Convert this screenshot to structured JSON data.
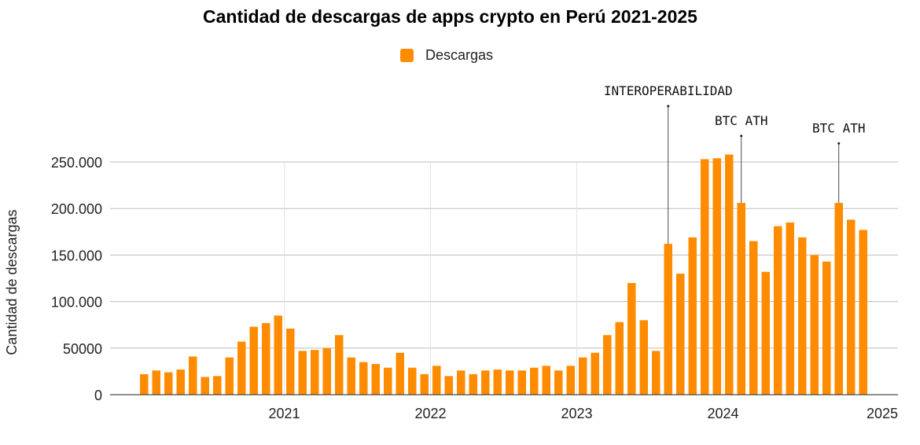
{
  "chart_data": {
    "type": "bar",
    "title": "Cantidad de descargas de apps crypto en Perú 2021-2025",
    "ylabel": "Cantidad de descargas",
    "xlabel": "",
    "ylim": [
      0,
      250000
    ],
    "grid": true,
    "legend_position": "top-center",
    "series": [
      {
        "name": "Descargas",
        "color": "#FF8C00",
        "values": [
          22000,
          26000,
          24000,
          27000,
          41000,
          19000,
          20000,
          40000,
          57000,
          73000,
          77000,
          85000,
          71000,
          47000,
          48000,
          50000,
          64000,
          40000,
          35000,
          33000,
          29000,
          45000,
          29000,
          22000,
          31000,
          20000,
          26000,
          22000,
          26000,
          27000,
          26000,
          26000,
          29000,
          31000,
          26000,
          31000,
          40000,
          45000,
          64000,
          78000,
          120000,
          80000,
          47000,
          162000,
          130000,
          169000,
          253000,
          254000,
          258000,
          206000,
          165000,
          132000,
          181000,
          185000,
          169000,
          150000,
          143000,
          206000,
          188000,
          177000
        ]
      }
    ],
    "y_ticks": [
      {
        "value": 0,
        "label": "0"
      },
      {
        "value": 50000,
        "label": "50000"
      },
      {
        "value": 100000,
        "label": "100.000"
      },
      {
        "value": 150000,
        "label": "150.000"
      },
      {
        "value": 200000,
        "label": "200.000"
      },
      {
        "value": 250000,
        "label": "250.000"
      }
    ],
    "x_ticks": [
      {
        "bar_index": 11.5,
        "label": "2021"
      },
      {
        "bar_index": 23.5,
        "label": "2022"
      },
      {
        "bar_index": 35.5,
        "label": "2023"
      },
      {
        "bar_index": 47.5,
        "label": "2024"
      },
      {
        "bar_index": 59.5,
        "label": "2025"
      }
    ],
    "annotations": [
      {
        "bar_index": 43,
        "label": "INTEROPERABILIDAD",
        "value": 310000
      },
      {
        "bar_index": 49,
        "label": "BTC ATH",
        "value": 278000
      },
      {
        "bar_index": 57,
        "label": "BTC ATH",
        "value": 270000
      }
    ]
  }
}
